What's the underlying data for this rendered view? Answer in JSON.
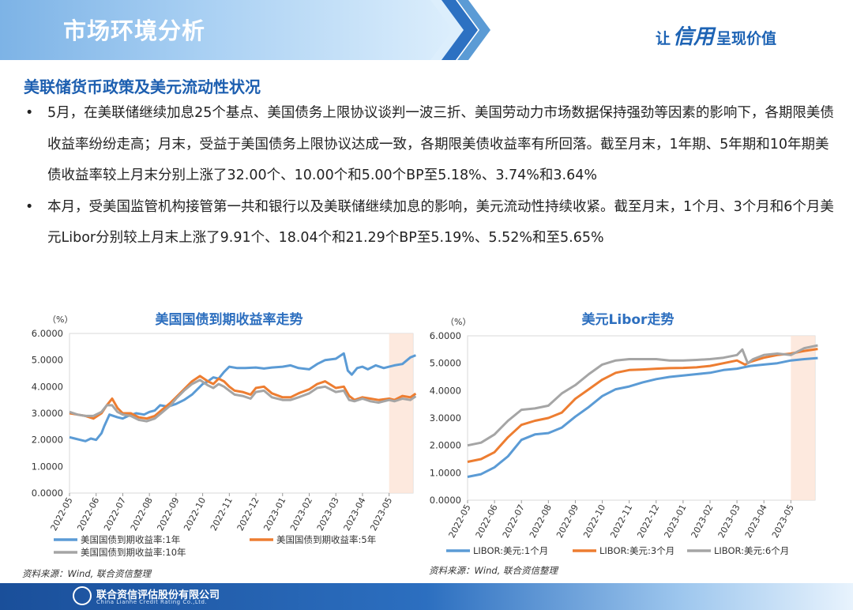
{
  "header": {
    "title": "市场环境分析",
    "slogan_pre": "让",
    "slogan_mid": "信用",
    "slogan_post": "呈现价值"
  },
  "section_title": "美联储货币政策及美元流动性状况",
  "bullets": [
    "5月，在美联储继续加息25个基点、美国债务上限协议谈判一波三折、美国劳动力市场数据保持强劲等因素的影响下，各期限美债收益率纷纷走高；月末，受益于美国债务上限协议达成一致，各期限美债收益率有所回落。截至月末，1年期、5年期和10年期美债收益率较上月末分别上涨了32.00个、10.00个和5.00个BP至5.18%、3.74%和3.64%",
    "本月，受美国监管机构接管第一共和银行以及美联储继续加息的影响，美元流动性持续收紧。截至月末，1个月、3个月和6个月美元Libor分别较上月末上涨了9.91个、18.04个和21.29个BP至5.19%、5.52%和至5.65%"
  ],
  "bullet_symbol": "•",
  "chart_data": [
    {
      "type": "line",
      "title": "美国国债到期收益率走势",
      "ylabel": "（%）",
      "xlabel": "",
      "ylim": [
        0,
        6
      ],
      "yticks": [
        "0.0000",
        "1.0000",
        "2.0000",
        "3.0000",
        "4.0000",
        "5.0000",
        "6.0000"
      ],
      "categories": [
        "2022-05",
        "2022-06",
        "2022-07",
        "2022-08",
        "2022-09",
        "2022-10",
        "2022-11",
        "2022-12",
        "2023-01",
        "2023-02",
        "2023-03",
        "2023-04",
        "2023-05"
      ],
      "highlight_from": "2023-05",
      "legend_position": "bottom",
      "series": [
        {
          "name": "美国国债到期收益率:1年",
          "color": "#5b9bd5",
          "x": [
            0,
            0.2,
            0.4,
            0.6,
            0.8,
            1,
            1.2,
            1.3,
            1.5,
            1.8,
            2,
            2.2,
            2.5,
            2.8,
            3,
            3.2,
            3.4,
            3.7,
            4,
            4.3,
            4.6,
            4.8,
            5,
            5.2,
            5.4,
            5.6,
            5.8,
            6,
            6.3,
            6.6,
            7,
            7.3,
            7.6,
            8,
            8.3,
            8.6,
            9,
            9.3,
            9.6,
            10,
            10.3,
            10.45,
            10.6,
            10.8,
            11,
            11.2,
            11.5,
            11.8,
            12,
            12.2,
            12.5,
            12.8,
            13
          ],
          "y": [
            2.1,
            2.05,
            2.0,
            1.95,
            2.05,
            2.0,
            2.25,
            2.5,
            2.95,
            2.85,
            2.8,
            2.9,
            3.0,
            2.95,
            3.05,
            3.1,
            3.3,
            3.25,
            3.35,
            3.5,
            3.7,
            3.9,
            4.1,
            4.2,
            4.35,
            4.3,
            4.55,
            4.75,
            4.7,
            4.7,
            4.72,
            4.68,
            4.72,
            4.75,
            4.8,
            4.7,
            4.65,
            4.85,
            5.0,
            5.05,
            5.25,
            4.6,
            4.45,
            4.7,
            4.75,
            4.65,
            4.8,
            4.7,
            4.75,
            4.8,
            4.85,
            5.1,
            5.18
          ]
        },
        {
          "name": "美国国债到期收益率:5年",
          "color": "#ed7d31",
          "x": [
            0,
            0.3,
            0.6,
            0.9,
            1.2,
            1.4,
            1.6,
            1.8,
            2,
            2.3,
            2.6,
            2.9,
            3.2,
            3.5,
            3.8,
            4,
            4.3,
            4.6,
            4.9,
            5.2,
            5.4,
            5.6,
            5.8,
            6,
            6.2,
            6.5,
            6.8,
            7,
            7.3,
            7.6,
            8,
            8.3,
            8.6,
            9,
            9.3,
            9.6,
            10,
            10.3,
            10.5,
            10.7,
            11,
            11.3,
            11.6,
            12,
            12.2,
            12.5,
            12.8,
            13
          ],
          "y": [
            3.0,
            2.95,
            2.9,
            2.8,
            3.0,
            3.3,
            3.55,
            3.2,
            3.0,
            3.0,
            2.85,
            2.8,
            2.9,
            3.15,
            3.4,
            3.6,
            3.9,
            4.2,
            4.4,
            4.2,
            4.1,
            4.3,
            4.2,
            4.0,
            3.85,
            3.8,
            3.7,
            3.95,
            4.0,
            3.75,
            3.6,
            3.6,
            3.75,
            3.9,
            4.1,
            4.2,
            3.95,
            4.0,
            3.65,
            3.5,
            3.6,
            3.55,
            3.5,
            3.55,
            3.5,
            3.65,
            3.6,
            3.74
          ]
        },
        {
          "name": "美国国债到期收益率:10年",
          "color": "#a5a5a5",
          "x": [
            0,
            0.3,
            0.6,
            0.9,
            1.2,
            1.4,
            1.6,
            1.8,
            2,
            2.3,
            2.6,
            2.9,
            3.2,
            3.5,
            3.8,
            4,
            4.3,
            4.6,
            4.9,
            5.2,
            5.4,
            5.6,
            5.8,
            6,
            6.2,
            6.5,
            6.8,
            7,
            7.3,
            7.6,
            8,
            8.3,
            8.6,
            9,
            9.3,
            9.6,
            10,
            10.3,
            10.5,
            10.7,
            11,
            11.3,
            11.6,
            12,
            12.2,
            12.5,
            12.8,
            13
          ],
          "y": [
            3.05,
            2.95,
            2.9,
            2.9,
            3.05,
            3.3,
            3.3,
            3.05,
            2.95,
            2.9,
            2.75,
            2.7,
            2.8,
            3.05,
            3.3,
            3.55,
            3.85,
            4.1,
            4.25,
            4.05,
            3.95,
            4.1,
            4.0,
            3.85,
            3.7,
            3.65,
            3.55,
            3.8,
            3.85,
            3.6,
            3.5,
            3.5,
            3.6,
            3.75,
            3.95,
            4.0,
            3.8,
            3.85,
            3.5,
            3.45,
            3.55,
            3.45,
            3.4,
            3.5,
            3.45,
            3.55,
            3.5,
            3.64
          ]
        }
      ],
      "source": "资料来源：Wind, 联合资信整理"
    },
    {
      "type": "line",
      "title": "美元Libor走势",
      "ylabel": "（%）",
      "xlabel": "",
      "ylim": [
        0,
        6
      ],
      "yticks": [
        "0.0000",
        "1.0000",
        "2.0000",
        "3.0000",
        "4.0000",
        "5.0000",
        "6.0000"
      ],
      "categories": [
        "2022-05",
        "2022-06",
        "2022-07",
        "2022-08",
        "2022-09",
        "2022-10",
        "2022-11",
        "2022-12",
        "2023-01",
        "2023-02",
        "2023-03",
        "2023-04",
        "2023-05"
      ],
      "highlight_from": "2023-05",
      "legend_position": "bottom",
      "series": [
        {
          "name": "LIBOR:美元:1个月",
          "color": "#5b9bd5",
          "x": [
            0,
            0.5,
            1,
            1.5,
            2,
            2.5,
            3,
            3.5,
            4,
            4.5,
            5,
            5.5,
            6,
            6.5,
            7,
            7.5,
            8,
            8.5,
            9,
            9.5,
            10,
            10.5,
            11,
            11.5,
            12,
            12.5,
            13
          ],
          "y": [
            0.85,
            0.95,
            1.2,
            1.6,
            2.2,
            2.4,
            2.45,
            2.65,
            3.05,
            3.4,
            3.8,
            4.05,
            4.15,
            4.3,
            4.42,
            4.5,
            4.55,
            4.6,
            4.65,
            4.75,
            4.8,
            4.9,
            4.95,
            5.0,
            5.1,
            5.15,
            5.19
          ]
        },
        {
          "name": "LIBOR:美元:3个月",
          "color": "#ed7d31",
          "x": [
            0,
            0.5,
            1,
            1.5,
            2,
            2.5,
            3,
            3.5,
            4,
            4.5,
            5,
            5.5,
            6,
            6.5,
            7,
            7.5,
            8,
            8.5,
            9,
            9.5,
            10,
            10.3,
            10.5,
            11,
            11.5,
            12,
            12.5,
            13
          ],
          "y": [
            1.4,
            1.5,
            1.75,
            2.3,
            2.75,
            2.9,
            3.0,
            3.2,
            3.7,
            4.05,
            4.4,
            4.65,
            4.75,
            4.77,
            4.8,
            4.82,
            4.83,
            4.85,
            4.9,
            5.0,
            5.1,
            4.95,
            5.05,
            5.2,
            5.3,
            5.35,
            5.45,
            5.52
          ]
        },
        {
          "name": "LIBOR:美元:6个月",
          "color": "#a5a5a5",
          "x": [
            0,
            0.5,
            1,
            1.5,
            2,
            2.5,
            3,
            3.5,
            4,
            4.5,
            5,
            5.5,
            6,
            6.5,
            7,
            7.5,
            8,
            8.5,
            9,
            9.5,
            10,
            10.2,
            10.4,
            10.6,
            11,
            11.5,
            12,
            12.5,
            13
          ],
          "y": [
            2.0,
            2.1,
            2.4,
            2.9,
            3.3,
            3.35,
            3.45,
            3.9,
            4.2,
            4.6,
            4.95,
            5.1,
            5.15,
            5.15,
            5.15,
            5.1,
            5.1,
            5.12,
            5.15,
            5.2,
            5.3,
            5.5,
            5.0,
            5.15,
            5.3,
            5.35,
            5.3,
            5.55,
            5.65
          ]
        }
      ],
      "source": "资料来源：Wind, 联合资信整理"
    }
  ],
  "colors": {
    "accent": "#1d5fb0",
    "highlight_band": "#fce4d6"
  },
  "footer": {
    "company_cn": "联合资信评估股份有限公司",
    "company_en": "China Lianhe Credit Rating Co.,Ltd."
  }
}
